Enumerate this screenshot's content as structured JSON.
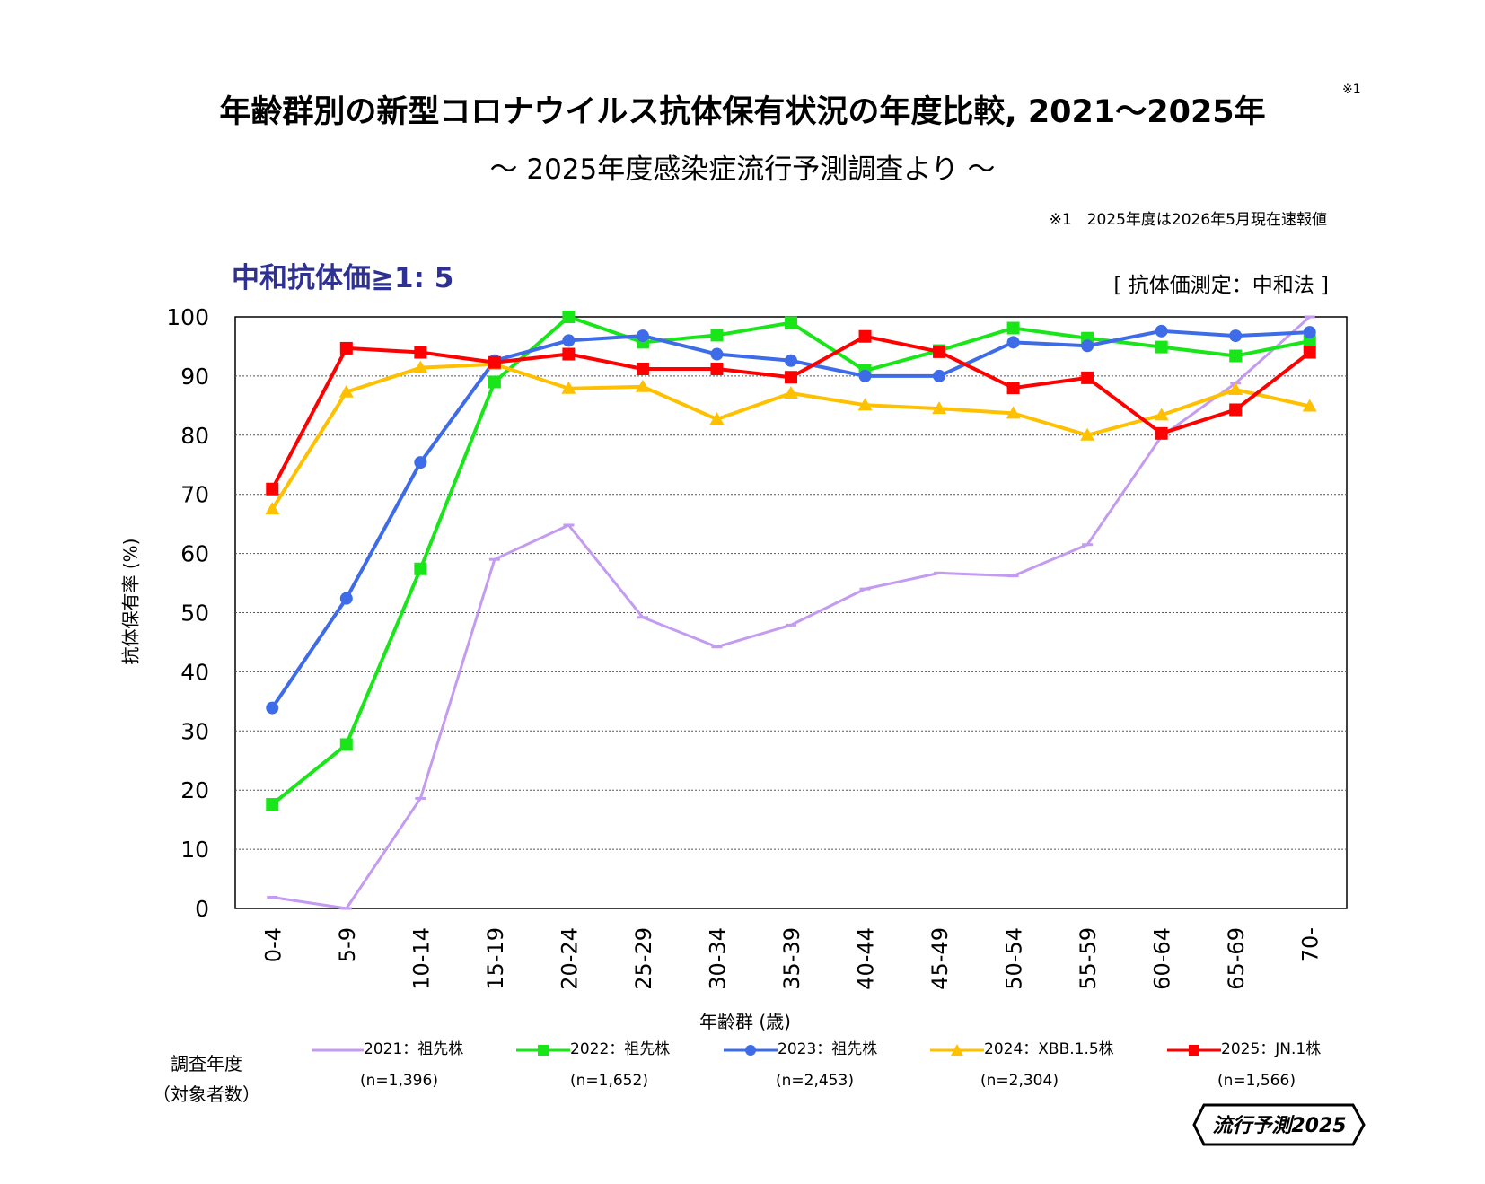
{
  "header": {
    "title": "年齢群別の新型コロナウイルス抗体保有状況の年度比較, 2021～2025年",
    "subtitle": "～ 2025年度感染症流行予測調査より ～",
    "note_mark": "※1",
    "note_text": "※1　2025年度は2026年5月現在速報値"
  },
  "panel": {
    "label": "中和抗体価≧1: 5",
    "method": "[ 抗体価測定：中和法 ]"
  },
  "legend": {
    "title_line1": "調査年度",
    "title_line2": "（対象者数）",
    "items": [
      {
        "name": "2021：祖先株",
        "n": "(n=1,396)"
      },
      {
        "name": "2022：祖先株",
        "n": "(n=1,652)"
      },
      {
        "name": "2023：祖先株",
        "n": "(n=2,453)"
      },
      {
        "name": "2024：XBB.1.5株",
        "n": "(n=2,304)"
      },
      {
        "name": "2025：JN.1株",
        "n": "(n=1,566)"
      }
    ]
  },
  "badge": {
    "text": "流行予測2025"
  },
  "chart_data": {
    "type": "line",
    "xlabel": "年齢群 (歳)",
    "ylabel": "抗体保有率 (%)",
    "ylim": [
      0,
      100
    ],
    "yticks": [
      0,
      10,
      20,
      30,
      40,
      50,
      60,
      70,
      80,
      90,
      100
    ],
    "grid": "horizontal dotted",
    "categories": [
      "0-4",
      "5-9",
      "10-14",
      "15-19",
      "20-24",
      "25-29",
      "30-34",
      "35-39",
      "40-44",
      "45-49",
      "50-54",
      "55-59",
      "60-64",
      "65-69",
      "70-"
    ],
    "series": [
      {
        "name": "2021：祖先株",
        "color": "#c39bf0",
        "marker": "dash",
        "values": [
          1.9,
          0,
          18.6,
          59,
          64.8,
          49.2,
          44.2,
          47.9,
          54,
          56.7,
          56.2,
          61.5,
          79.8,
          88.8,
          100
        ]
      },
      {
        "name": "2022：祖先株",
        "color": "#19e619",
        "marker": "square",
        "values": [
          17.6,
          27.7,
          57.4,
          89,
          100,
          95.7,
          96.9,
          99,
          90.9,
          94.3,
          98.1,
          96.4,
          94.9,
          93.4,
          95.9
        ]
      },
      {
        "name": "2023：祖先株",
        "color": "#3e6ce8",
        "marker": "circle",
        "values": [
          33.9,
          52.4,
          75.4,
          92.6,
          96,
          96.8,
          93.7,
          92.6,
          90,
          90,
          95.7,
          95.1,
          97.6,
          96.8,
          97.4
        ]
      },
      {
        "name": "2024：XBB.1.5株",
        "color": "#ffc000",
        "marker": "triangle",
        "values": [
          67.5,
          87.3,
          91.4,
          92,
          87.9,
          88.2,
          82.7,
          87.1,
          85.1,
          84.5,
          83.7,
          80,
          83.4,
          87.7,
          84.9
        ]
      },
      {
        "name": "2025：JN.1株",
        "color": "#ff0000",
        "marker": "square",
        "values": [
          70.9,
          94.7,
          94,
          92.3,
          93.7,
          91.2,
          91.2,
          89.8,
          96.7,
          94.1,
          88,
          89.7,
          80.3,
          84.3,
          94
        ]
      }
    ]
  }
}
